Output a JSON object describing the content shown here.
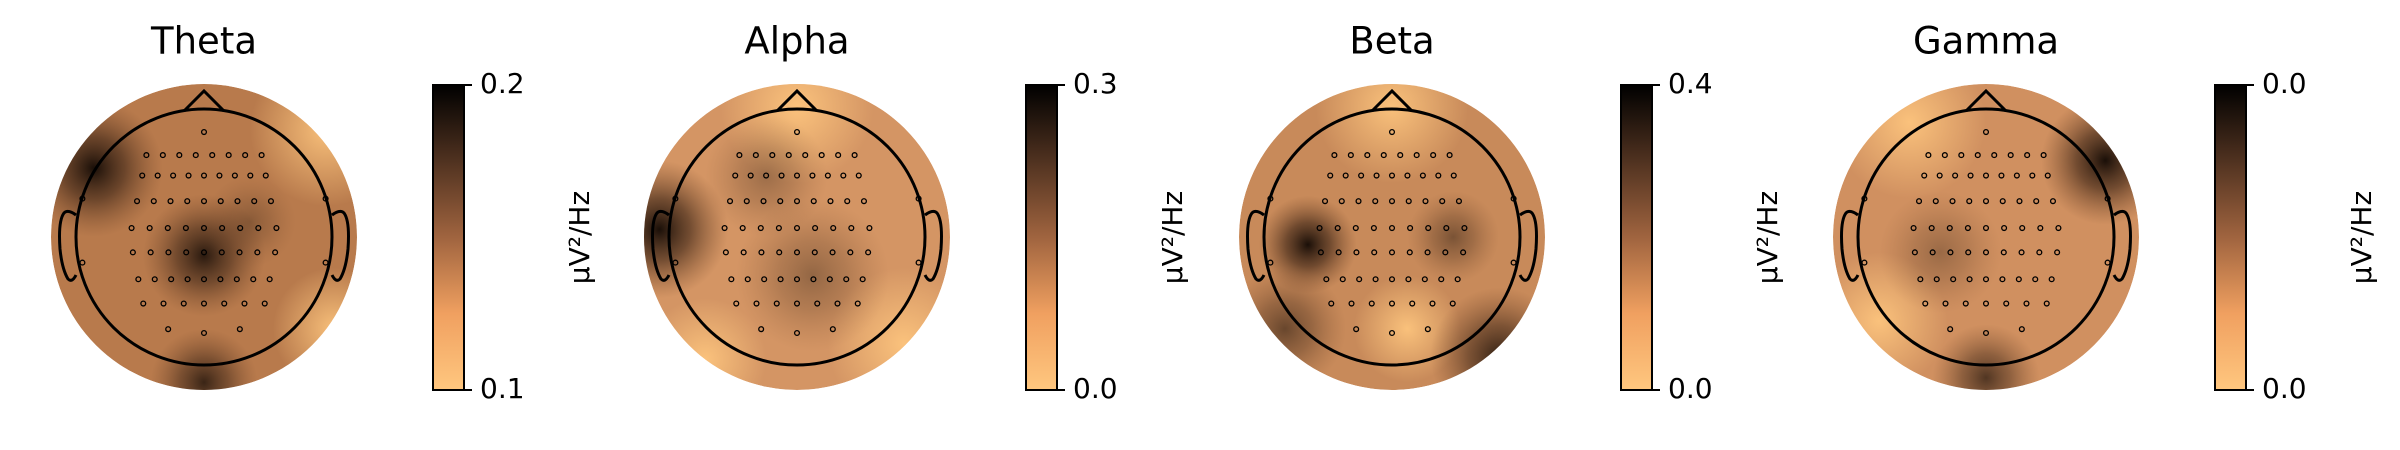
{
  "chart_data": [
    {
      "type": "topomap",
      "title": "Theta",
      "colorbar_label": "µV²/Hz",
      "clim": [
        0.1,
        0.2
      ],
      "ticks": [
        0.2,
        0.1
      ]
    },
    {
      "type": "topomap",
      "title": "Alpha",
      "colorbar_label": "µV²/Hz",
      "clim": [
        0,
        0.3
      ],
      "ticks": [
        0.3,
        {
          "value": 0,
          "label": "0.0"
        }
      ]
    },
    {
      "type": "topomap",
      "title": "Beta",
      "colorbar_label": "µV²/Hz",
      "clim": [
        0,
        0.4
      ],
      "ticks": [
        0.4,
        {
          "value": 0,
          "label": "0.0"
        }
      ]
    },
    {
      "type": "topomap",
      "title": "Gamma",
      "colorbar_label": "µV²/Hz",
      "clim": [
        0.01,
        0.04
      ],
      "ticks": [
        {
          "value": 0.04,
          "label": "0.0"
        },
        {
          "value": 0.01,
          "label": "0.0"
        }
      ]
    }
  ]
}
